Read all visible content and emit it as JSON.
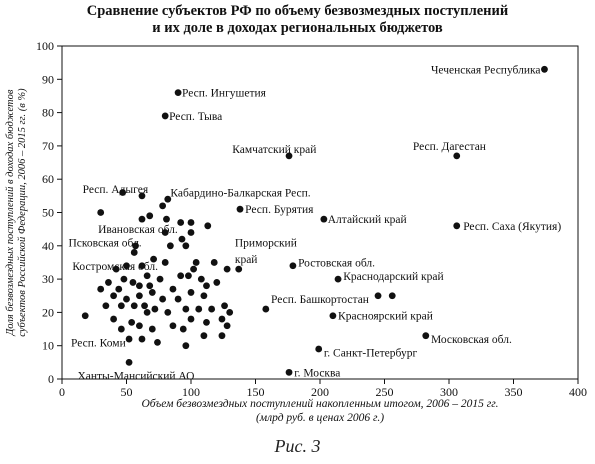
{
  "chart_data": {
    "type": "scatter",
    "title_lines": [
      "Сравнение субъектов РФ по объему безвозмездных поступлений",
      "и их доле в доходах региональных бюджетов"
    ],
    "xlabel_lines": [
      "Объем безвозмездных поступлений накопленным итогом, 2006 – 2015 гг.",
      "(млрд руб. в ценах 2006 г.)"
    ],
    "ylabel_lines": [
      "Доля безвозмездных поступлений в доходах бюджетов",
      "субъектов Российской Федерации, 2006 – 2015 гг. (в %)"
    ],
    "xlim": [
      0,
      400
    ],
    "ylim": [
      0,
      100
    ],
    "xticks": [
      0,
      50,
      100,
      150,
      200,
      250,
      300,
      350,
      400
    ],
    "yticks": [
      0,
      10,
      20,
      30,
      40,
      50,
      60,
      70,
      80,
      90,
      100
    ],
    "grid": false,
    "marker_color": "#111111",
    "points": [
      {
        "x": 374,
        "y": 93
      },
      {
        "x": 90,
        "y": 86
      },
      {
        "x": 80,
        "y": 79
      },
      {
        "x": 176,
        "y": 67
      },
      {
        "x": 306,
        "y": 67
      },
      {
        "x": 47,
        "y": 56
      },
      {
        "x": 82,
        "y": 54
      },
      {
        "x": 138,
        "y": 51
      },
      {
        "x": 203,
        "y": 48
      },
      {
        "x": 306,
        "y": 46
      },
      {
        "x": 137,
        "y": 33
      },
      {
        "x": 179,
        "y": 34
      },
      {
        "x": 214,
        "y": 30
      },
      {
        "x": 245,
        "y": 25
      },
      {
        "x": 256,
        "y": 25
      },
      {
        "x": 158,
        "y": 21
      },
      {
        "x": 210,
        "y": 19
      },
      {
        "x": 282,
        "y": 13
      },
      {
        "x": 199,
        "y": 9
      },
      {
        "x": 176,
        "y": 2
      },
      {
        "x": 52,
        "y": 5
      },
      {
        "x": 30,
        "y": 50
      },
      {
        "x": 57,
        "y": 40
      },
      {
        "x": 56,
        "y": 38
      },
      {
        "x": 62,
        "y": 55
      },
      {
        "x": 68,
        "y": 49
      },
      {
        "x": 78,
        "y": 52
      },
      {
        "x": 81,
        "y": 48
      },
      {
        "x": 92,
        "y": 47
      },
      {
        "x": 100,
        "y": 47
      },
      {
        "x": 100,
        "y": 44
      },
      {
        "x": 113,
        "y": 46
      },
      {
        "x": 93,
        "y": 42
      },
      {
        "x": 62,
        "y": 48
      },
      {
        "x": 80,
        "y": 44
      },
      {
        "x": 84,
        "y": 40
      },
      {
        "x": 96,
        "y": 40
      },
      {
        "x": 104,
        "y": 35
      },
      {
        "x": 118,
        "y": 35
      },
      {
        "x": 128,
        "y": 33
      },
      {
        "x": 102,
        "y": 33
      },
      {
        "x": 92,
        "y": 31
      },
      {
        "x": 71,
        "y": 36
      },
      {
        "x": 80,
        "y": 35
      },
      {
        "x": 62,
        "y": 34
      },
      {
        "x": 50,
        "y": 34
      },
      {
        "x": 42,
        "y": 33
      },
      {
        "x": 48,
        "y": 30
      },
      {
        "x": 55,
        "y": 29
      },
      {
        "x": 36,
        "y": 29
      },
      {
        "x": 30,
        "y": 27
      },
      {
        "x": 44,
        "y": 27
      },
      {
        "x": 60,
        "y": 28
      },
      {
        "x": 66,
        "y": 31
      },
      {
        "x": 68,
        "y": 28
      },
      {
        "x": 76,
        "y": 30
      },
      {
        "x": 86,
        "y": 27
      },
      {
        "x": 98,
        "y": 31
      },
      {
        "x": 108,
        "y": 30
      },
      {
        "x": 112,
        "y": 28
      },
      {
        "x": 120,
        "y": 29
      },
      {
        "x": 110,
        "y": 25
      },
      {
        "x": 100,
        "y": 26
      },
      {
        "x": 90,
        "y": 24
      },
      {
        "x": 78,
        "y": 24
      },
      {
        "x": 70,
        "y": 26
      },
      {
        "x": 60,
        "y": 25
      },
      {
        "x": 50,
        "y": 24
      },
      {
        "x": 40,
        "y": 25
      },
      {
        "x": 34,
        "y": 22
      },
      {
        "x": 46,
        "y": 22
      },
      {
        "x": 56,
        "y": 22
      },
      {
        "x": 64,
        "y": 22
      },
      {
        "x": 72,
        "y": 21
      },
      {
        "x": 82,
        "y": 20
      },
      {
        "x": 96,
        "y": 21
      },
      {
        "x": 106,
        "y": 21
      },
      {
        "x": 116,
        "y": 21
      },
      {
        "x": 126,
        "y": 22
      },
      {
        "x": 130,
        "y": 20
      },
      {
        "x": 124,
        "y": 18
      },
      {
        "x": 112,
        "y": 17
      },
      {
        "x": 100,
        "y": 18
      },
      {
        "x": 66,
        "y": 20
      },
      {
        "x": 54,
        "y": 17
      },
      {
        "x": 60,
        "y": 16
      },
      {
        "x": 70,
        "y": 15
      },
      {
        "x": 86,
        "y": 16
      },
      {
        "x": 94,
        "y": 15
      },
      {
        "x": 110,
        "y": 13
      },
      {
        "x": 128,
        "y": 16
      },
      {
        "x": 124,
        "y": 13
      },
      {
        "x": 96,
        "y": 10
      },
      {
        "x": 74,
        "y": 11
      },
      {
        "x": 62,
        "y": 12
      },
      {
        "x": 52,
        "y": 12
      },
      {
        "x": 46,
        "y": 15
      },
      {
        "x": 40,
        "y": 18
      },
      {
        "x": 18,
        "y": 19
      }
    ],
    "annotations": [
      {
        "text": "Чеченская Республика",
        "x": 286,
        "y": 93
      },
      {
        "text": "Респ. Ингушетия",
        "x": 93,
        "y": 86
      },
      {
        "text": "Респ. Тыва",
        "x": 83,
        "y": 79
      },
      {
        "text": "Камчатский край",
        "x": 132,
        "y": 69
      },
      {
        "text": "Респ. Дагестан",
        "x": 272,
        "y": 70
      },
      {
        "text": "Респ. Адыгея",
        "x": 16,
        "y": 57
      },
      {
        "text": "Кабардино-Балкарская Респ.",
        "x": 84,
        "y": 56
      },
      {
        "text": "Респ. Бурятия",
        "x": 142,
        "y": 51
      },
      {
        "text": "Алтайский край",
        "x": 206,
        "y": 48
      },
      {
        "text": "Респ.   Саха (Якутия)",
        "x": 311,
        "y": 46
      },
      {
        "text": "Ивановская обл.",
        "x": 28,
        "y": 45
      },
      {
        "text": "Псковская обл.",
        "x": 5,
        "y": 41
      },
      {
        "text": "Приморский",
        "x": 134,
        "y": 41
      },
      {
        "text": "край",
        "x": 134,
        "y": 36
      },
      {
        "text": "Ростовская обл.",
        "x": 183,
        "y": 35
      },
      {
        "text": "Костромская обл.",
        "x": 8,
        "y": 34
      },
      {
        "text": "Краснодарский край",
        "x": 218,
        "y": 31
      },
      {
        "text": "Респ. Башкортостан",
        "x": 162,
        "y": 24
      },
      {
        "text": "Красноярский край",
        "x": 214,
        "y": 19
      },
      {
        "text": "Московская обл.",
        "x": 286,
        "y": 12
      },
      {
        "text": "Респ. Коми",
        "x": 7,
        "y": 11
      },
      {
        "text": "г. Санкт-Петербург",
        "x": 203,
        "y": 8
      },
      {
        "text": "Ханты-Мансийский АО",
        "x": 12,
        "y": 1
      },
      {
        "text": "г. Москва",
        "x": 180,
        "y": 2
      }
    ]
  },
  "caption": "Рис. 3"
}
